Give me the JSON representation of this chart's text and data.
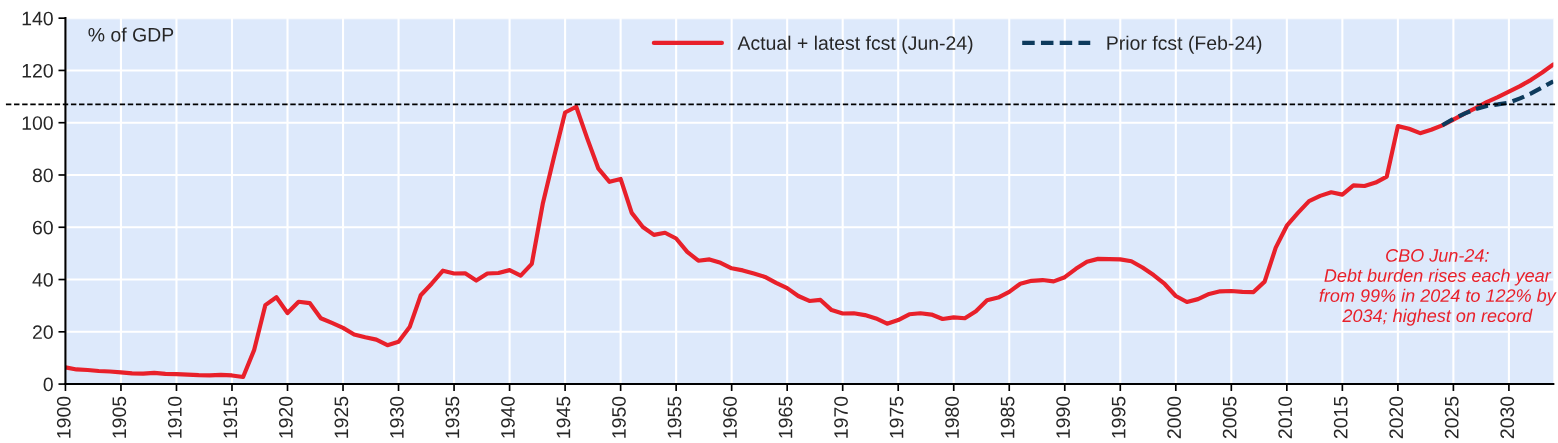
{
  "chart_data": {
    "type": "line",
    "ylabel": "% of GDP",
    "annotations": [
      "CBO Jun-24:\nDebt burden rises each year\nfrom 99% in 2024 to 122% by\n2034; highest on record"
    ],
    "xlim": [
      1900,
      2034
    ],
    "xticks": [
      1900,
      1905,
      1910,
      1915,
      1920,
      1925,
      1930,
      1935,
      1940,
      1945,
      1950,
      1955,
      1960,
      1965,
      1970,
      1975,
      1980,
      1985,
      1990,
      1995,
      2000,
      2005,
      2010,
      2015,
      2020,
      2025,
      2030
    ],
    "ylim": [
      0,
      140
    ],
    "yticks": [
      0,
      20,
      40,
      60,
      80,
      100,
      120,
      140
    ],
    "grid": true,
    "legend": "top",
    "ref_lines": [
      {
        "axis": "y",
        "value": 107,
        "color": "#000000",
        "line_style": "dashed"
      }
    ],
    "series": [
      {
        "name": "Actual + latest fcst (Jun-24)",
        "color": "#e8202a",
        "line_style": "solid",
        "x": [
          1900,
          1901,
          1902,
          1903,
          1904,
          1905,
          1906,
          1907,
          1908,
          1909,
          1910,
          1911,
          1912,
          1913,
          1914,
          1915,
          1916,
          1917,
          1918,
          1919,
          1920,
          1921,
          1922,
          1923,
          1924,
          1925,
          1926,
          1927,
          1928,
          1929,
          1930,
          1931,
          1932,
          1933,
          1934,
          1935,
          1936,
          1937,
          1938,
          1939,
          1940,
          1941,
          1942,
          1943,
          1944,
          1945,
          1946,
          1947,
          1948,
          1949,
          1950,
          1951,
          1952,
          1953,
          1954,
          1955,
          1956,
          1957,
          1958,
          1959,
          1960,
          1961,
          1962,
          1963,
          1964,
          1965,
          1966,
          1967,
          1968,
          1969,
          1970,
          1971,
          1972,
          1973,
          1974,
          1975,
          1976,
          1977,
          1978,
          1979,
          1980,
          1981,
          1982,
          1983,
          1984,
          1985,
          1986,
          1987,
          1988,
          1989,
          1990,
          1991,
          1992,
          1993,
          1994,
          1995,
          1996,
          1997,
          1998,
          1999,
          2000,
          2001,
          2002,
          2003,
          2004,
          2005,
          2006,
          2007,
          2008,
          2009,
          2010,
          2011,
          2012,
          2013,
          2014,
          2015,
          2016,
          2017,
          2018,
          2019,
          2020,
          2021,
          2022,
          2023,
          2024,
          2025,
          2026,
          2027,
          2028,
          2029,
          2030,
          2031,
          2032,
          2033,
          2034
        ],
        "values": [
          6.4,
          5.6,
          5.4,
          5.0,
          4.8,
          4.5,
          4.1,
          4.0,
          4.3,
          3.9,
          3.8,
          3.6,
          3.4,
          3.3,
          3.5,
          3.3,
          2.7,
          13.1,
          30.2,
          33.2,
          27.2,
          31.5,
          31.0,
          25.2,
          23.4,
          21.5,
          19.0,
          17.9,
          17.0,
          14.9,
          16.2,
          21.8,
          34.0,
          38.5,
          43.4,
          42.3,
          42.4,
          39.6,
          42.3,
          42.5,
          43.6,
          41.5,
          46.0,
          69.2,
          86.9,
          103.9,
          106.1,
          93.9,
          82.4,
          77.4,
          78.5,
          65.5,
          60.1,
          57.1,
          57.9,
          55.7,
          50.6,
          47.2,
          47.7,
          46.4,
          44.3,
          43.5,
          42.3,
          41.0,
          38.7,
          36.7,
          33.7,
          31.8,
          32.2,
          28.3,
          27.0,
          27.1,
          26.4,
          25.1,
          23.1,
          24.5,
          26.7,
          27.1,
          26.6,
          24.9,
          25.5,
          25.2,
          27.9,
          32.1,
          33.1,
          35.3,
          38.4,
          39.5,
          39.8,
          39.3,
          40.9,
          44.1,
          46.8,
          47.9,
          47.8,
          47.7,
          47.0,
          44.6,
          41.7,
          38.3,
          33.7,
          31.4,
          32.5,
          34.5,
          35.5,
          35.6,
          35.3,
          35.2,
          39.2,
          52.2,
          60.6,
          65.5,
          70.0,
          72.0,
          73.4,
          72.5,
          76.0,
          75.8,
          77.1,
          79.4,
          98.7,
          97.7,
          96.0,
          97.3,
          99.0,
          101.2,
          103.5,
          105.6,
          107.9,
          109.8,
          111.9,
          114.0,
          116.4,
          119.2,
          122.3
        ]
      },
      {
        "name": "Prior fcst (Feb-24)",
        "color": "#0d3a5c",
        "line_style": "dashed",
        "x": [
          2024,
          2025,
          2026,
          2027,
          2028,
          2029,
          2030,
          2031,
          2032,
          2033,
          2034
        ],
        "values": [
          99.0,
          101.5,
          103.5,
          105.2,
          106.4,
          107.0,
          107.7,
          109.3,
          111.2,
          113.5,
          115.8
        ]
      }
    ]
  }
}
